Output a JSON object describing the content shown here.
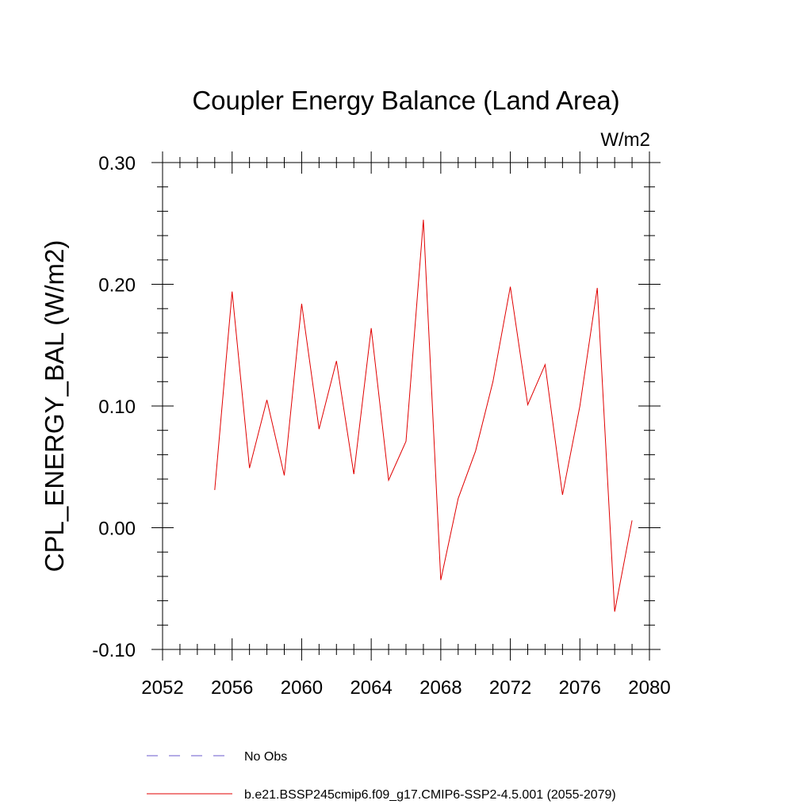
{
  "chart_data": {
    "type": "line",
    "title": "Coupler Energy Balance (Land Area)",
    "units": "W/m2",
    "xlabel": "",
    "ylabel": "CPL_ENERGY_BAL  (W/m2)",
    "xlim": [
      2052,
      2080
    ],
    "ylim": [
      -0.1,
      0.3
    ],
    "x_ticks": [
      2052,
      2056,
      2060,
      2064,
      2068,
      2072,
      2076,
      2080
    ],
    "x_tick_labels": [
      "2052",
      "2056",
      "2060",
      "2064",
      "2068",
      "2072",
      "2076",
      "2080"
    ],
    "y_ticks": [
      -0.1,
      0.0,
      0.1,
      0.2,
      0.3
    ],
    "y_tick_labels": [
      "-0.10",
      "0.00",
      "0.10",
      "0.20",
      "0.30"
    ],
    "grid": false,
    "series": [
      {
        "name": "b.e21.BSSP245cmip6.f09_g17.CMIP6-SSP2-4.5.001 (2055-2079)",
        "color": "#e00000",
        "style": "solid",
        "x": [
          2055,
          2056,
          2057,
          2058,
          2059,
          2060,
          2061,
          2062,
          2063,
          2064,
          2065,
          2066,
          2067,
          2068,
          2069,
          2070,
          2071,
          2072,
          2073,
          2074,
          2075,
          2076,
          2077,
          2078,
          2079
        ],
        "values": [
          0.031,
          0.194,
          0.049,
          0.105,
          0.043,
          0.184,
          0.081,
          0.137,
          0.044,
          0.164,
          0.039,
          0.071,
          0.253,
          -0.043,
          0.024,
          0.063,
          0.12,
          0.198,
          0.101,
          0.134,
          0.027,
          0.1,
          0.197,
          -0.069,
          0.006
        ]
      }
    ],
    "legend": [
      {
        "label": "No Obs",
        "color": "#6a5acd",
        "style": "dashed"
      },
      {
        "label": "b.e21.BSSP245cmip6.f09_g17.CMIP6-SSP2-4.5.001 (2055-2079)",
        "color": "#e00000",
        "style": "solid"
      }
    ],
    "legend_position": "bottom"
  }
}
